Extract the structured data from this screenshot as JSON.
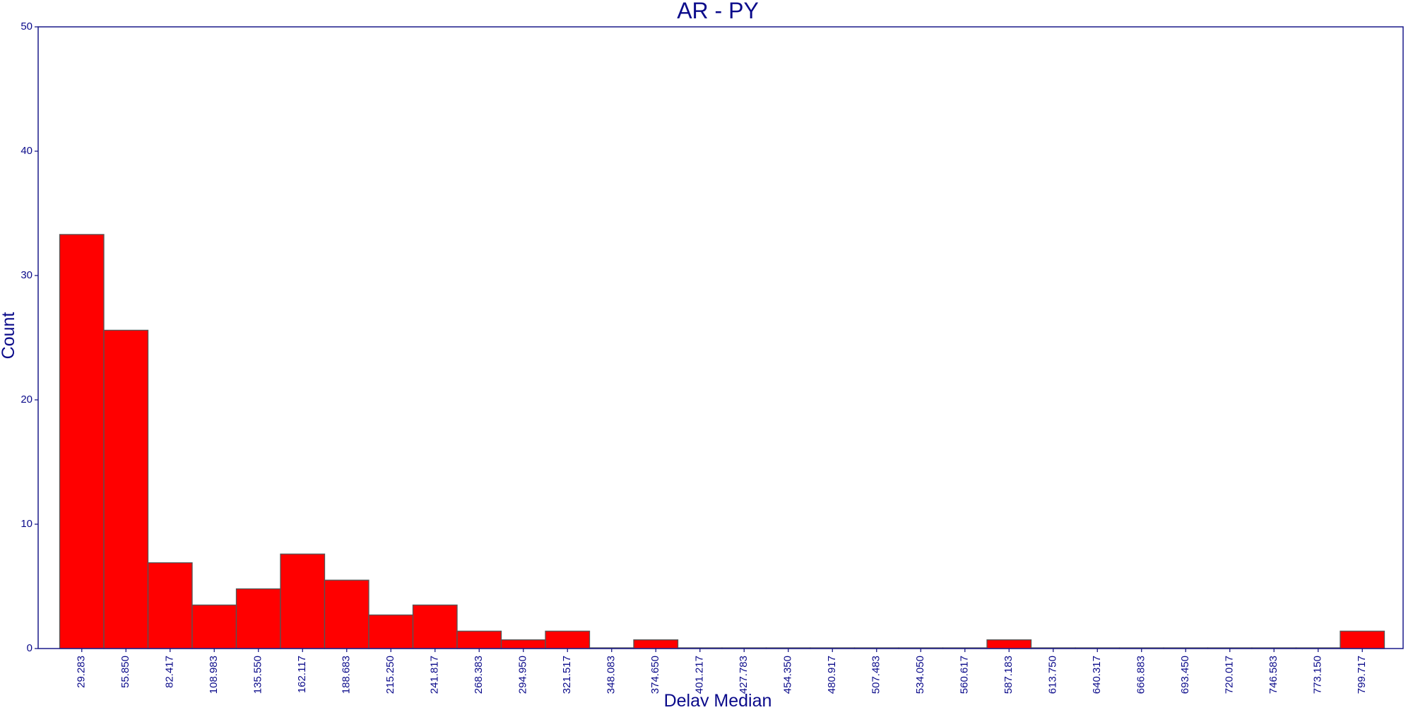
{
  "chart_data": {
    "type": "bar",
    "title": "AR - PY",
    "xlabel": "Delay Median",
    "ylabel": "Count",
    "ylim": [
      0,
      50
    ],
    "yticks": [
      0,
      10,
      20,
      30,
      40,
      50
    ],
    "grid": false,
    "legend": "none",
    "bar_color": "#ff0000",
    "categories": [
      "29.283",
      "55.850",
      "82.417",
      "108.983",
      "135.550",
      "162.117",
      "188.683",
      "215.250",
      "241.817",
      "268.383",
      "294.950",
      "321.517",
      "348.083",
      "374.650",
      "401.217",
      "427.783",
      "454.350",
      "480.917",
      "507.483",
      "534.050",
      "560.617",
      "587.183",
      "613.750",
      "640.317",
      "666.883",
      "693.450",
      "720.017",
      "746.583",
      "773.150",
      "799.717"
    ],
    "values": [
      33.3,
      25.6,
      6.9,
      3.5,
      4.8,
      7.6,
      5.5,
      2.7,
      3.5,
      1.4,
      0.7,
      1.4,
      0,
      0.7,
      0,
      0,
      0,
      0,
      0,
      0,
      0,
      0.7,
      0,
      0,
      0,
      0,
      0,
      0,
      0,
      1.4
    ]
  }
}
